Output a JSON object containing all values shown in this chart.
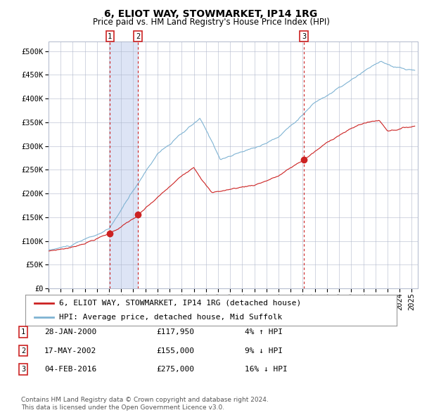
{
  "title": "6, ELIOT WAY, STOWMARKET, IP14 1RG",
  "subtitle": "Price paid vs. HM Land Registry's House Price Index (HPI)",
  "xlim_start": 1995.0,
  "xlim_end": 2025.5,
  "ylim": [
    0,
    520000
  ],
  "yticks": [
    0,
    50000,
    100000,
    150000,
    200000,
    250000,
    300000,
    350000,
    400000,
    450000,
    500000
  ],
  "ytick_labels": [
    "£0",
    "£50K",
    "£100K",
    "£150K",
    "£200K",
    "£250K",
    "£300K",
    "£350K",
    "£400K",
    "£450K",
    "£500K"
  ],
  "hpi_color": "#7fb3d3",
  "price_color": "#cc2222",
  "dot_color": "#cc2222",
  "vline_color": "#cc2222",
  "grid_color": "#b0b8cc",
  "span_color": "#dde4f5",
  "plot_bg": "#ffffff",
  "fig_bg": "#ffffff",
  "legend_line1": "6, ELIOT WAY, STOWMARKET, IP14 1RG (detached house)",
  "legend_line2": "HPI: Average price, detached house, Mid Suffolk",
  "transactions": [
    {
      "num": 1,
      "date": "28-JAN-2000",
      "price": 117950,
      "pct": "4%",
      "dir": "↑",
      "year": 2000.07
    },
    {
      "num": 2,
      "date": "17-MAY-2002",
      "price": 155000,
      "pct": "9%",
      "dir": "↓",
      "year": 2002.38
    },
    {
      "num": 3,
      "date": "04-FEB-2016",
      "price": 275000,
      "pct": "16%",
      "dir": "↓",
      "year": 2016.09
    }
  ],
  "footer1": "Contains HM Land Registry data © Crown copyright and database right 2024.",
  "footer2": "This data is licensed under the Open Government Licence v3.0.",
  "title_fontsize": 10,
  "subtitle_fontsize": 8.5,
  "tick_fontsize": 7.5,
  "legend_fontsize": 8,
  "table_fontsize": 8,
  "footer_fontsize": 6.5
}
